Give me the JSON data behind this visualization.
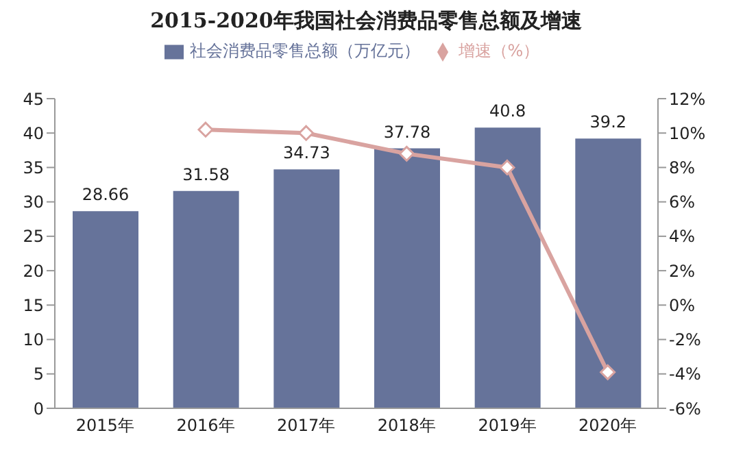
{
  "chart_data": {
    "type": "bar",
    "title": "2015-2020年我国社会消费品零售总额及增速",
    "categories": [
      "2015年",
      "2016年",
      "2017年",
      "2018年",
      "2019年",
      "2020年"
    ],
    "series": [
      {
        "name": "社会消费品零售总额（万亿元）",
        "color": "#66739a",
        "values": [
          28.66,
          31.58,
          34.73,
          37.78,
          40.8,
          39.2
        ],
        "data_labels": true
      },
      {
        "name": "增速（%）",
        "type": "line",
        "axis": "y2",
        "color": "#d9a3a0",
        "marker": "diamond",
        "values": [
          null,
          10.2,
          10.0,
          8.8,
          8.0,
          -3.9
        ]
      }
    ],
    "ylim": [
      0,
      45
    ],
    "yticks": [
      0,
      5,
      10,
      15,
      20,
      25,
      30,
      35,
      40,
      45
    ],
    "y2lim": [
      -6,
      12
    ],
    "y2ticks": [
      {
        "value": -6,
        "label": "-6%"
      },
      {
        "value": -4,
        "label": "-4%"
      },
      {
        "value": -2,
        "label": "-2%"
      },
      {
        "value": 0,
        "label": "0%"
      },
      {
        "value": 2,
        "label": "2%"
      },
      {
        "value": 4,
        "label": "4%"
      },
      {
        "value": 6,
        "label": "6%"
      },
      {
        "value": 8,
        "label": "8%"
      },
      {
        "value": 10,
        "label": "10%"
      },
      {
        "value": 12,
        "label": "12%"
      }
    ],
    "legend": "top"
  }
}
